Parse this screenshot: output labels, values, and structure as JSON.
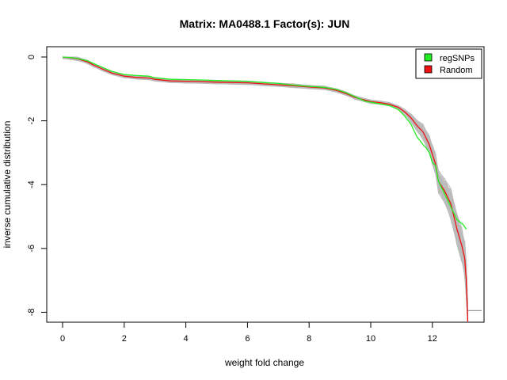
{
  "chart_data": {
    "type": "line",
    "title": "Matrix: MA0488.1 Factor(s): JUN",
    "xlabel": "weight fold change",
    "ylabel": "inverse cumulative distribution",
    "xlim": [
      -0.5,
      13.7
    ],
    "ylim": [
      -8.3,
      0.25
    ],
    "xticks": [
      0,
      2,
      4,
      6,
      8,
      10,
      12
    ],
    "yticks": [
      0,
      -2,
      -4,
      -6,
      -8
    ],
    "grid": false,
    "legend_position": "top-right",
    "series": [
      {
        "name": "regSNPs",
        "color": "#22ee22",
        "x": [
          0,
          0.3,
          0.5,
          0.8,
          1.0,
          1.3,
          1.6,
          2.0,
          2.4,
          2.8,
          3.0,
          3.5,
          4.0,
          4.5,
          5.0,
          5.5,
          6.0,
          6.5,
          7.0,
          7.5,
          8.0,
          8.5,
          8.9,
          9.2,
          9.5,
          9.8,
          10.0,
          10.3,
          10.6,
          10.9,
          11.1,
          11.3,
          11.5,
          11.7,
          11.8,
          11.9,
          12.0,
          12.1,
          12.2,
          12.4,
          12.6,
          12.8,
          13.0,
          13.1
        ],
        "y": [
          0,
          -0.02,
          -0.05,
          -0.12,
          -0.2,
          -0.33,
          -0.45,
          -0.55,
          -0.58,
          -0.6,
          -0.65,
          -0.7,
          -0.71,
          -0.72,
          -0.74,
          -0.75,
          -0.76,
          -0.8,
          -0.83,
          -0.88,
          -0.92,
          -0.95,
          -1.02,
          -1.12,
          -1.25,
          -1.38,
          -1.42,
          -1.47,
          -1.52,
          -1.65,
          -1.85,
          -2.1,
          -2.5,
          -2.75,
          -2.85,
          -3.0,
          -3.3,
          -3.4,
          -3.9,
          -4.3,
          -4.7,
          -5.1,
          -5.25,
          -5.4
        ]
      },
      {
        "name": "Random",
        "color": "#ee1111",
        "x": [
          0,
          0.3,
          0.5,
          0.8,
          1.0,
          1.3,
          1.6,
          2.0,
          2.4,
          2.8,
          3.0,
          3.5,
          4.0,
          4.5,
          5.0,
          5.5,
          6.0,
          6.5,
          7.0,
          7.5,
          8.0,
          8.5,
          8.9,
          9.2,
          9.5,
          9.8,
          10.0,
          10.3,
          10.6,
          10.9,
          11.1,
          11.3,
          11.5,
          11.7,
          11.8,
          11.9,
          12.0,
          12.1,
          12.2,
          12.4,
          12.6,
          12.8,
          12.95,
          13.05,
          13.1,
          13.15
        ],
        "y": [
          0,
          -0.03,
          -0.06,
          -0.15,
          -0.25,
          -0.38,
          -0.5,
          -0.6,
          -0.64,
          -0.66,
          -0.7,
          -0.75,
          -0.76,
          -0.77,
          -0.79,
          -0.8,
          -0.81,
          -0.84,
          -0.87,
          -0.9,
          -0.94,
          -0.97,
          -1.05,
          -1.15,
          -1.27,
          -1.35,
          -1.4,
          -1.43,
          -1.48,
          -1.58,
          -1.72,
          -1.9,
          -2.15,
          -2.35,
          -2.55,
          -2.75,
          -3.05,
          -3.35,
          -3.9,
          -4.2,
          -4.6,
          -5.4,
          -5.9,
          -6.3,
          -7.0,
          -8.3
        ]
      }
    ],
    "background_bundle": {
      "color": "#bbbbbb",
      "count": 40,
      "tail_x": [
        13.15,
        13.6
      ],
      "tail_y": -7.95
    }
  }
}
